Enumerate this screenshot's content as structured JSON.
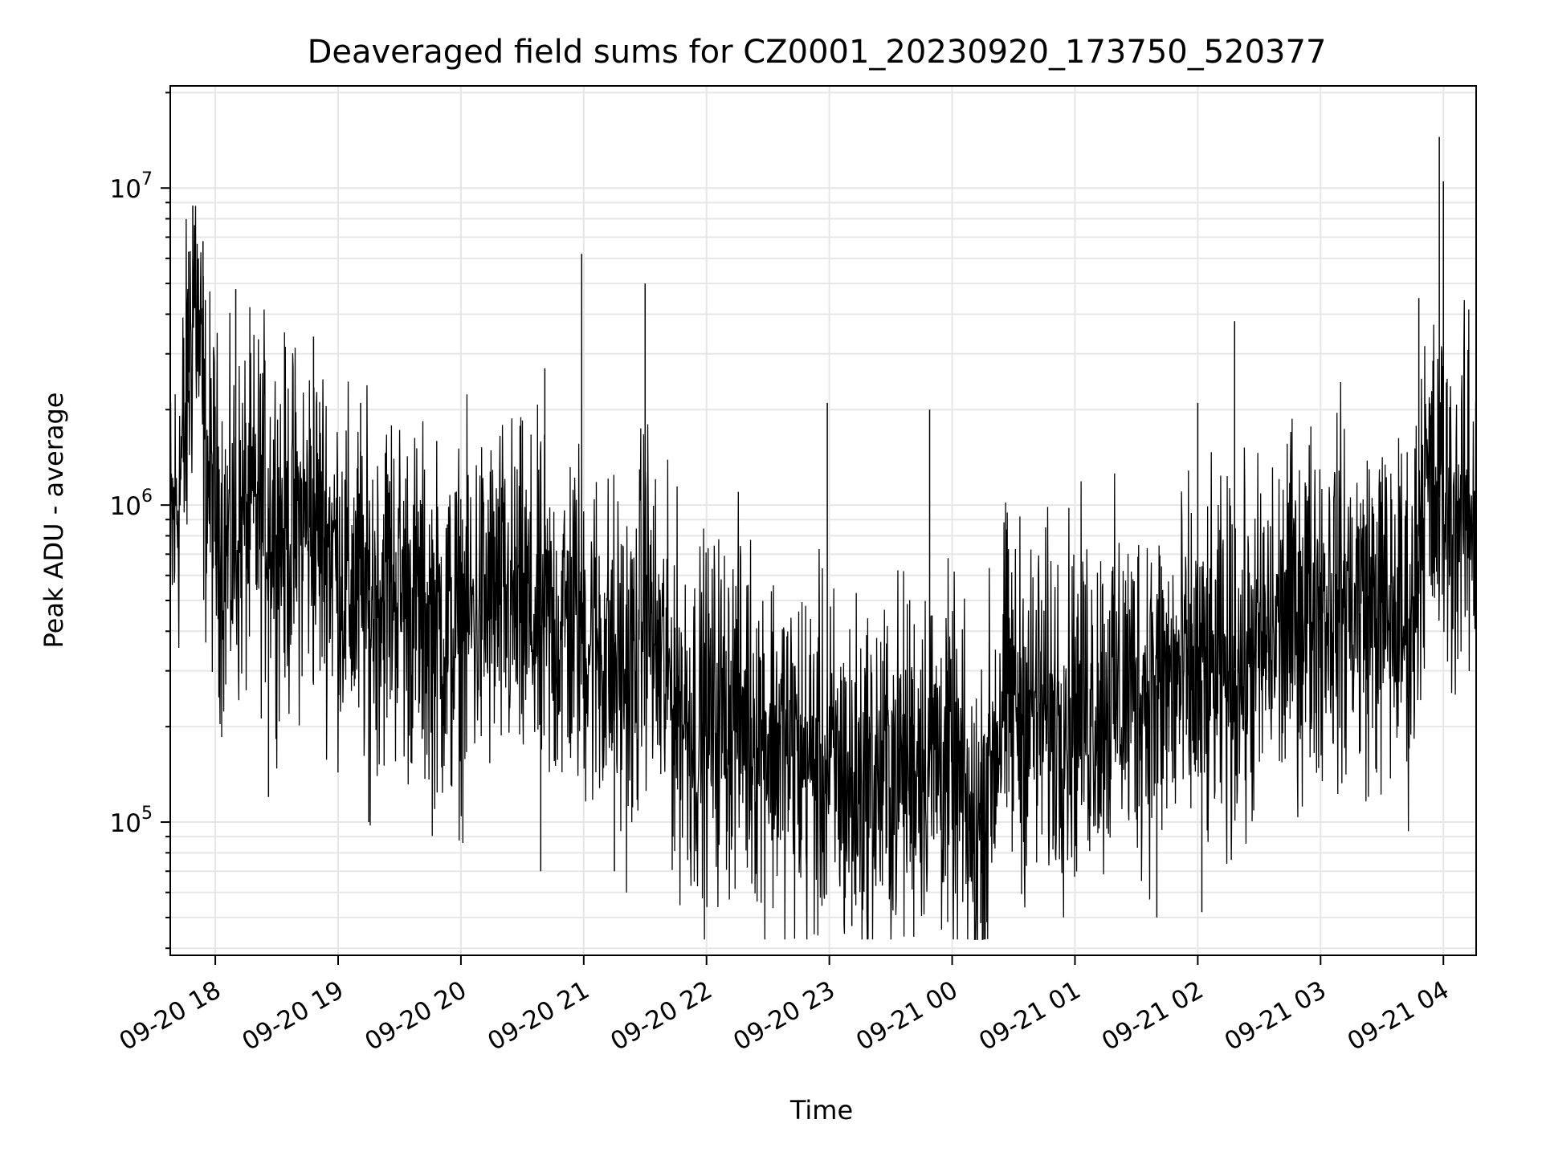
{
  "chart_data": {
    "type": "line",
    "title": "Deaveraged field sums for CZ0001_20230920_173750_520377",
    "xlabel": "Time",
    "ylabel": "Peak ADU - average",
    "yscale": "log",
    "x_range": [
      "2023-09-20 17:38",
      "2023-09-21 04:16"
    ],
    "ylim": [
      38000,
      21000000
    ],
    "x_ticks": [
      "09-20 18",
      "09-20 19",
      "09-20 20",
      "09-20 21",
      "09-20 22",
      "09-20 23",
      "09-21 00",
      "09-21 01",
      "09-21 02",
      "09-21 03",
      "09-21 04"
    ],
    "y_ticks": [
      {
        "base": "10",
        "exp": "5",
        "value": 100000
      },
      {
        "base": "10",
        "exp": "6",
        "value": 1000000
      },
      {
        "base": "10",
        "exp": "7",
        "value": 10000000
      }
    ],
    "grid": true,
    "line_color": "#000000",
    "series": [
      {
        "values": [
          [
            "2023-09-20 17:38",
            700000
          ],
          [
            "2023-09-20 17:45",
            1600000
          ],
          [
            "2023-09-20 17:50",
            5500000
          ],
          [
            "2023-09-20 17:55",
            1400000
          ],
          [
            "2023-09-20 18:05",
            700000
          ],
          [
            "2023-09-20 18:15",
            900000
          ],
          [
            "2023-09-20 18:25",
            1000000
          ],
          [
            "2023-09-20 18:35",
            800000
          ],
          [
            "2023-09-20 18:45",
            900000
          ],
          [
            "2023-09-20 18:55",
            800000
          ],
          [
            "2023-09-20 19:05",
            550000
          ],
          [
            "2023-09-20 19:15",
            500000
          ],
          [
            "2023-09-20 19:25",
            600000
          ],
          [
            "2023-09-20 19:35",
            500000
          ],
          [
            "2023-09-20 19:45",
            420000
          ],
          [
            "2023-09-20 19:55",
            380000
          ],
          [
            "2023-09-20 20:05",
            450000
          ],
          [
            "2023-09-20 20:15",
            500000
          ],
          [
            "2023-09-20 20:25",
            480000
          ],
          [
            "2023-09-20 20:35",
            430000
          ],
          [
            "2023-09-20 20:45",
            400000
          ],
          [
            "2023-09-20 20:55",
            450000
          ],
          [
            "2023-09-20 21:05",
            380000
          ],
          [
            "2023-09-20 21:15",
            320000
          ],
          [
            "2023-09-20 21:25",
            280000
          ],
          [
            "2023-09-20 21:30",
            600000
          ],
          [
            "2023-09-20 21:35",
            330000
          ],
          [
            "2023-09-20 21:45",
            250000
          ],
          [
            "2023-09-20 21:55",
            200000
          ],
          [
            "2023-09-20 22:05",
            220000
          ],
          [
            "2023-09-20 22:15",
            230000
          ],
          [
            "2023-09-20 22:25",
            200000
          ],
          [
            "2023-09-20 22:35",
            180000
          ],
          [
            "2023-09-20 22:45",
            160000
          ],
          [
            "2023-09-20 22:55",
            150000
          ],
          [
            "2023-09-20 23:05",
            140000
          ],
          [
            "2023-09-20 23:15",
            130000
          ],
          [
            "2023-09-20 23:25",
            140000
          ],
          [
            "2023-09-20 23:35",
            150000
          ],
          [
            "2023-09-20 23:45",
            170000
          ],
          [
            "2023-09-20 23:55",
            160000
          ],
          [
            "2023-09-21 00:05",
            120000
          ],
          [
            "2023-09-21 00:10",
            80000
          ],
          [
            "2023-09-21 00:15",
            110000
          ],
          [
            "2023-09-21 00:25",
            250000
          ],
          [
            "2023-09-21 00:35",
            230000
          ],
          [
            "2023-09-21 00:45",
            220000
          ],
          [
            "2023-09-21 00:55",
            230000
          ],
          [
            "2023-09-21 01:05",
            240000
          ],
          [
            "2023-09-21 01:15",
            250000
          ],
          [
            "2023-09-21 01:25",
            260000
          ],
          [
            "2023-09-21 01:35",
            270000
          ],
          [
            "2023-09-21 01:45",
            270000
          ],
          [
            "2023-09-21 01:55",
            280000
          ],
          [
            "2023-09-21 02:05",
            280000
          ],
          [
            "2023-09-21 02:15",
            300000
          ],
          [
            "2023-09-21 02:25",
            320000
          ],
          [
            "2023-09-21 02:35",
            380000
          ],
          [
            "2023-09-21 02:45",
            450000
          ],
          [
            "2023-09-21 02:55",
            500000
          ],
          [
            "2023-09-21 03:05",
            520000
          ],
          [
            "2023-09-21 03:15",
            500000
          ],
          [
            "2023-09-21 03:25",
            480000
          ],
          [
            "2023-09-21 03:35",
            450000
          ],
          [
            "2023-09-21 03:45",
            430000
          ],
          [
            "2023-09-21 03:50",
            1200000
          ],
          [
            "2023-09-21 03:55",
            1000000
          ],
          [
            "2023-09-21 04:00",
            1100000
          ],
          [
            "2023-09-21 04:05",
            900000
          ],
          [
            "2023-09-21 04:10",
            950000
          ],
          [
            "2023-09-21 04:16",
            950000
          ]
        ],
        "spikes": [
          [
            "2023-09-20 17:49",
            8800000
          ],
          [
            "2023-09-20 17:54",
            6800000
          ],
          [
            "2023-09-20 17:47",
            6300000
          ],
          [
            "2023-09-20 18:10",
            4800000
          ],
          [
            "2023-09-20 18:48",
            3400000
          ],
          [
            "2023-09-20 19:11",
            2100000
          ],
          [
            "2023-09-20 20:41",
            2700000
          ],
          [
            "2023-09-20 20:59",
            6200000
          ],
          [
            "2023-09-20 21:30",
            5000000
          ],
          [
            "2023-09-20 22:59",
            2100000
          ],
          [
            "2023-09-20 23:49",
            2000000
          ],
          [
            "2023-09-21 02:00",
            2100000
          ],
          [
            "2023-09-21 02:18",
            3800000
          ],
          [
            "2023-09-21 03:48",
            4500000
          ],
          [
            "2023-09-21 03:58",
            14500000
          ],
          [
            "2023-09-21 04:00",
            10500000
          ],
          [
            "2023-09-20 18:26",
            120000
          ],
          [
            "2023-09-20 19:15",
            100000
          ],
          [
            "2023-09-20 20:39",
            70000
          ],
          [
            "2023-09-20 21:15",
            70000
          ],
          [
            "2023-09-20 23:11",
            47000
          ],
          [
            "2023-09-21 00:14",
            48000
          ],
          [
            "2023-09-21 01:40",
            50000
          ],
          [
            "2023-09-21 02:02",
            52000
          ]
        ]
      }
    ]
  }
}
